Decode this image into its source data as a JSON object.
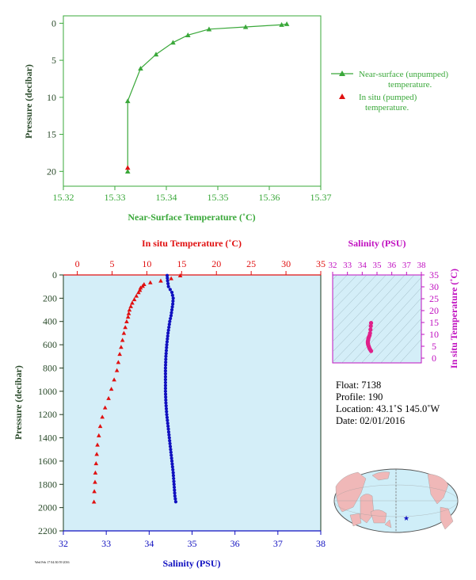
{
  "chart_data": [
    {
      "type": "line",
      "name": "near-surface",
      "xlabel": "Near-Surface Temperature (˚C)",
      "ylabel": "Pressure (decibar)",
      "xlim": [
        15.32,
        15.37
      ],
      "ylim": [
        22,
        -1
      ],
      "xticks": [
        "15.32",
        "15.33",
        "15.34",
        "15.35",
        "15.36",
        "15.37"
      ],
      "yticks": [
        "0",
        "5",
        "10",
        "15",
        "20"
      ],
      "series": [
        {
          "name": "Near-surface (unpumped) temperature.",
          "color": "#3aa83a",
          "marker": "triangle",
          "x": [
            15.3325,
            15.3325,
            15.335,
            15.338,
            15.3413,
            15.3442,
            15.3483,
            15.3554,
            15.3624,
            15.3634
          ],
          "y": [
            20,
            10.5,
            6.1,
            4.2,
            2.6,
            1.6,
            0.8,
            0.5,
            0.2,
            0.1
          ]
        },
        {
          "name": "In situ (pumped) temperature.",
          "color": "#e01010",
          "marker": "triangle",
          "x": [
            15.3325
          ],
          "y": [
            19.5
          ]
        }
      ],
      "legend": "right"
    },
    {
      "type": "line",
      "name": "profile",
      "ylabel": "Pressure (decibar)",
      "top_xlabel": "In situ Temperature (˚C)",
      "bottom_xlabel": "Salinity (PSU)",
      "top_xlim": [
        -2,
        35
      ],
      "bottom_xlim": [
        32,
        38
      ],
      "ylim": [
        2200,
        0
      ],
      "top_xticks": [
        "0",
        "5",
        "10",
        "15",
        "20",
        "25",
        "30",
        "35"
      ],
      "bottom_xticks": [
        "32",
        "33",
        "34",
        "35",
        "36",
        "37",
        "38"
      ],
      "yticks": [
        "0",
        "200",
        "400",
        "600",
        "800",
        "1000",
        "1200",
        "1400",
        "1600",
        "1800",
        "2000",
        "2200"
      ],
      "temperature": {
        "color": "#e01010",
        "p": [
          5,
          30,
          50,
          65,
          80,
          95,
          110,
          130,
          150,
          180,
          210,
          240,
          270,
          300,
          330,
          360,
          400,
          450,
          500,
          560,
          620,
          680,
          750,
          820,
          900,
          980,
          1060,
          1140,
          1220,
          1300,
          1380,
          1460,
          1540,
          1620,
          1700,
          1780,
          1860,
          1950
        ],
        "t": [
          14.8,
          13.5,
          12.0,
          10.5,
          9.6,
          9.4,
          9.1,
          9.0,
          8.8,
          8.5,
          8.2,
          7.9,
          7.7,
          7.5,
          7.4,
          7.3,
          7.1,
          6.9,
          6.7,
          6.5,
          6.3,
          6.1,
          5.9,
          5.7,
          5.3,
          4.9,
          4.5,
          4.0,
          3.6,
          3.3,
          3.1,
          2.9,
          2.8,
          2.7,
          2.6,
          2.55,
          2.45,
          2.4
        ]
      },
      "salinity": {
        "color": "#1010c0",
        "p": [
          5,
          50,
          100,
          150,
          200,
          250,
          300,
          350,
          400,
          500,
          600,
          700,
          800,
          900,
          1000,
          1100,
          1200,
          1300,
          1400,
          1500,
          1600,
          1700,
          1800,
          1900,
          1950
        ],
        "s": [
          34.42,
          34.43,
          34.45,
          34.53,
          34.56,
          34.55,
          34.53,
          34.51,
          34.48,
          34.44,
          34.41,
          34.39,
          34.38,
          34.38,
          34.38,
          34.39,
          34.41,
          34.44,
          34.47,
          34.5,
          34.53,
          34.56,
          34.58,
          34.6,
          34.62
        ]
      }
    },
    {
      "type": "scatter",
      "name": "ts-diagram",
      "xlabel": "Salinity (PSU)",
      "ylabel": "In situ Temperature (˚C)",
      "xlim": [
        32,
        38
      ],
      "ylim": [
        -2,
        35
      ],
      "xticks": [
        "32",
        "33",
        "34",
        "35",
        "36",
        "37",
        "38"
      ],
      "yticks": [
        "0",
        "5",
        "10",
        "15",
        "20",
        "25",
        "30",
        "35"
      ],
      "color": "#e0208a",
      "s": [
        34.6,
        34.58,
        34.56,
        34.53,
        34.5,
        34.46,
        34.43,
        34.41,
        34.4,
        34.38,
        34.38,
        34.39,
        34.41,
        34.44,
        34.47,
        34.5,
        34.55,
        34.6
      ],
      "t": [
        14.8,
        13.5,
        12,
        10.5,
        9.6,
        9,
        8.5,
        8,
        7.5,
        7,
        6.5,
        6,
        5.5,
        5,
        4.5,
        4,
        3.5,
        3
      ]
    }
  ],
  "info": {
    "float": "Float:  7138",
    "profile": "Profile:  190",
    "location": "Location:  43.1˚S  145.0˚W",
    "date": "Date:  02/01/2016"
  },
  "stamp": "Wed Feb 17 04:30:59 2016",
  "map": {
    "marker_color": "#1010c0",
    "land_color": "#f0b8b8",
    "ocean_color": "#cfeef8"
  }
}
